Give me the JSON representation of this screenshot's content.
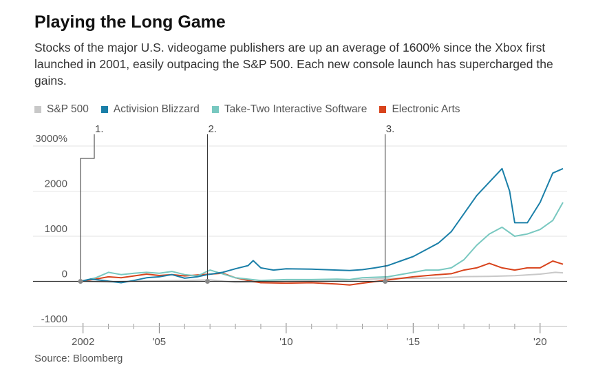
{
  "title": "Playing the Long Game",
  "subtitle": "Stocks of the major U.S. videogame publishers are up an average of 1600% since the Xbox first launched in 2001, easily outpacing the S&P 500. Each new console launch has supercharged the gains.",
  "source": "Source: Bloomberg",
  "chart_data": {
    "type": "line",
    "title": "Playing the Long Game",
    "ylabel": "",
    "xlabel": "",
    "xlim": [
      2001.9,
      2020.9
    ],
    "ylim": [
      -1000,
      3000
    ],
    "yticks": [
      -1000,
      0,
      1000,
      2000,
      3000
    ],
    "ytick_labels": [
      "-1000",
      "0",
      "1000",
      "2000",
      "3000%"
    ],
    "xticks": [
      2002,
      2005,
      2010,
      2015,
      2020
    ],
    "xtick_labels": [
      "2002",
      "'05",
      "'10",
      "'15",
      "'20"
    ],
    "grid": true,
    "legend_position": "top-left",
    "annotations": [
      {
        "label": "1.",
        "x": 2001.9
      },
      {
        "label": "2.",
        "x": 2006.9
      },
      {
        "label": "3.",
        "x": 2013.9
      }
    ],
    "series": [
      {
        "name": "S&P 500",
        "color": "#c8c8c8",
        "x": [
          2001.9,
          2003,
          2004,
          2005,
          2006,
          2007,
          2008,
          2009,
          2010,
          2011,
          2012,
          2013,
          2014,
          2015,
          2016,
          2017,
          2018,
          2019,
          2020,
          2020.6,
          2020.9
        ],
        "y": [
          0,
          -15,
          5,
          10,
          20,
          35,
          -25,
          -15,
          5,
          8,
          15,
          40,
          65,
          68,
          75,
          105,
          110,
          125,
          160,
          200,
          190
        ]
      },
      {
        "name": "Activision Blizzard",
        "color": "#1a7fa8",
        "x": [
          2001.9,
          2002.3,
          2002.8,
          2003.5,
          2004,
          2004.5,
          2005,
          2005.5,
          2006,
          2006.5,
          2006.9,
          2007.5,
          2008,
          2008.5,
          2008.7,
          2009,
          2009.5,
          2010,
          2011,
          2012,
          2012.5,
          2013,
          2013.5,
          2014,
          2014.5,
          2015,
          2015.5,
          2016,
          2016.5,
          2017,
          2017.5,
          2018,
          2018.5,
          2018.8,
          2019,
          2019.5,
          2020,
          2020.5,
          2020.9
        ],
        "y": [
          0,
          50,
          20,
          -30,
          20,
          80,
          100,
          150,
          70,
          100,
          150,
          200,
          280,
          350,
          460,
          300,
          250,
          280,
          270,
          250,
          240,
          260,
          300,
          350,
          450,
          550,
          700,
          850,
          1100,
          1500,
          1900,
          2200,
          2500,
          2000,
          1300,
          1300,
          1750,
          2400,
          2500
        ]
      },
      {
        "name": "Take-Two Interactive Software",
        "color": "#78c8c0",
        "x": [
          2001.9,
          2002.5,
          2003,
          2003.5,
          2004,
          2004.5,
          2005,
          2005.5,
          2006,
          2006.5,
          2007,
          2008,
          2009,
          2010,
          2011,
          2012,
          2012.5,
          2013,
          2014,
          2015,
          2015.5,
          2016,
          2016.5,
          2017,
          2017.5,
          2018,
          2018.5,
          2019,
          2019.5,
          2020,
          2020.5,
          2020.9
        ],
        "y": [
          0,
          80,
          200,
          150,
          180,
          200,
          180,
          220,
          150,
          120,
          250,
          80,
          20,
          40,
          40,
          50,
          40,
          80,
          100,
          200,
          250,
          250,
          300,
          480,
          800,
          1050,
          1200,
          1000,
          1050,
          1150,
          1350,
          1750
        ]
      },
      {
        "name": "Electronic Arts",
        "color": "#d8431c",
        "x": [
          2001.9,
          2002.5,
          2003,
          2003.5,
          2004,
          2004.5,
          2005,
          2005.5,
          2006,
          2006.5,
          2007,
          2007.5,
          2008,
          2008.5,
          2009,
          2010,
          2011,
          2012,
          2012.5,
          2013,
          2014,
          2015,
          2016,
          2016.5,
          2017,
          2017.5,
          2018,
          2018.5,
          2019,
          2019.5,
          2020,
          2020.5,
          2020.9
        ],
        "y": [
          0,
          50,
          100,
          80,
          120,
          160,
          130,
          150,
          120,
          140,
          160,
          180,
          80,
          20,
          -30,
          -40,
          -30,
          -60,
          -80,
          -40,
          30,
          100,
          150,
          170,
          250,
          300,
          400,
          300,
          250,
          300,
          300,
          450,
          380
        ]
      }
    ]
  }
}
